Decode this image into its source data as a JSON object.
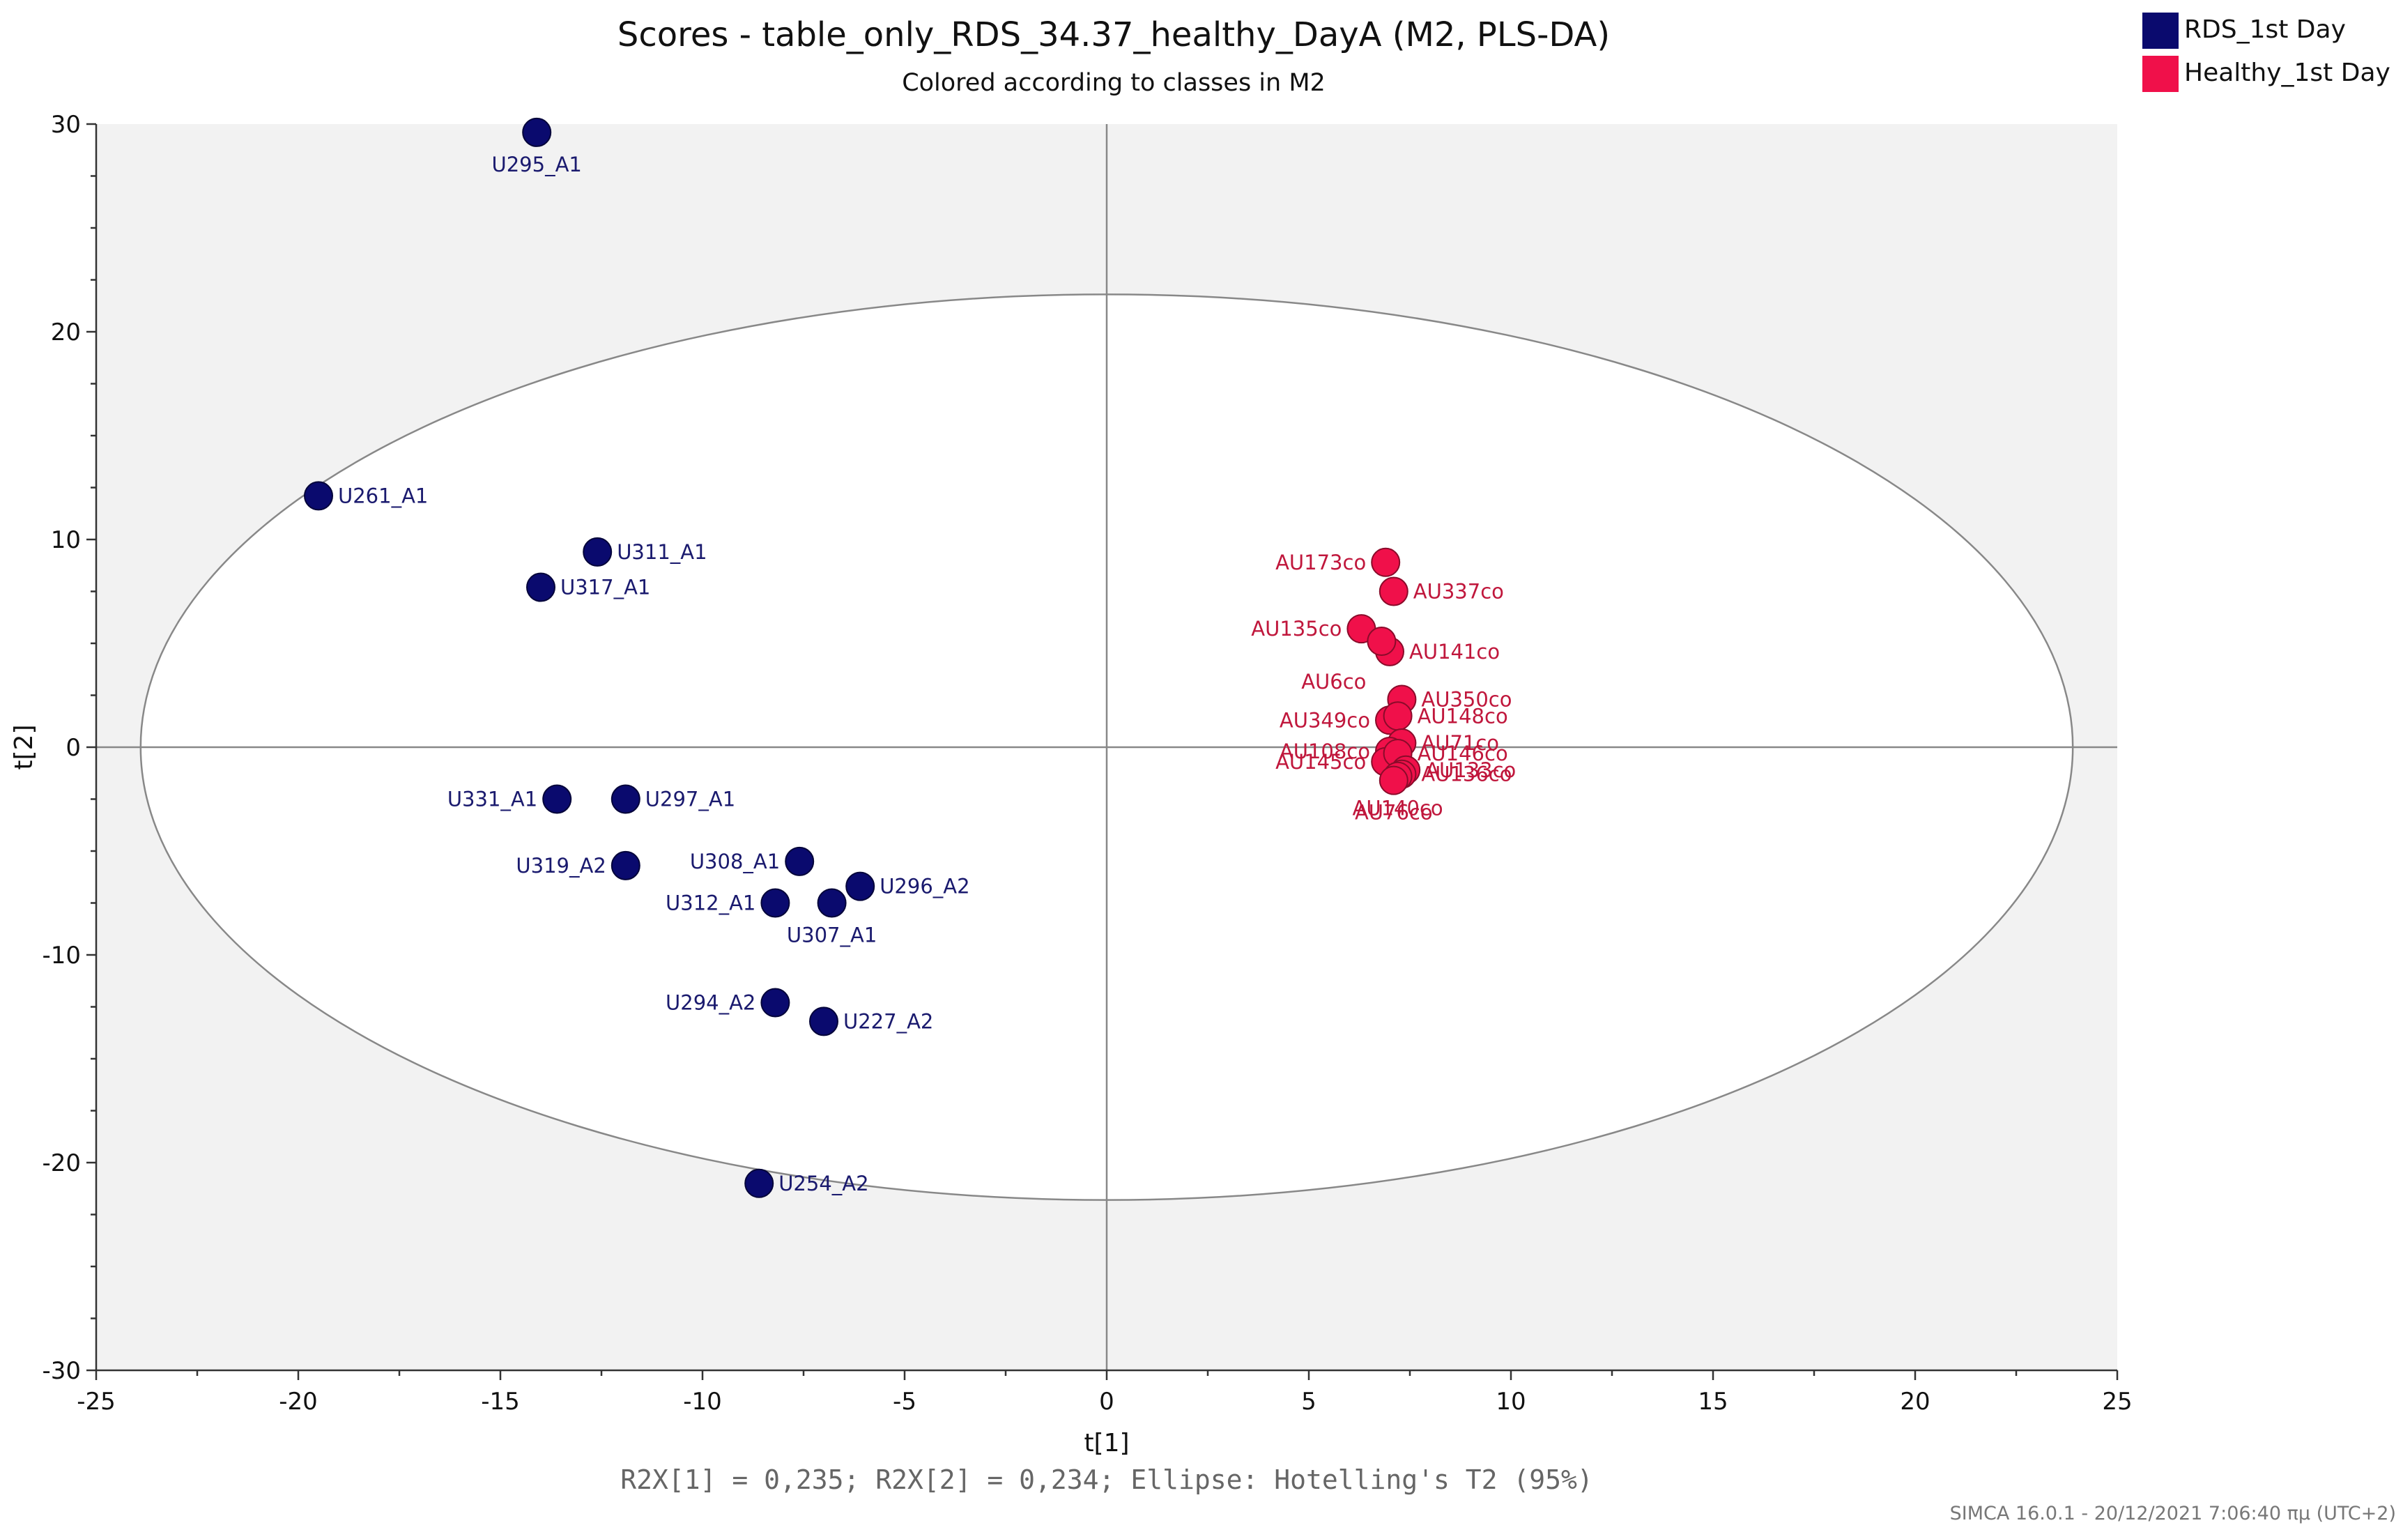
{
  "chart_data": {
    "type": "scatter",
    "title": "Scores - table_only_RDS_34.37_healthy_DayA (M2, PLS-DA)",
    "subtitle": "Colored according to classes in M2",
    "xlabel": "t[1]",
    "ylabel": "t[2]",
    "xlim": [
      -25,
      25
    ],
    "ylim": [
      -30,
      30
    ],
    "xticks": [
      -25,
      -20,
      -15,
      -10,
      -5,
      0,
      5,
      10,
      15,
      20,
      25
    ],
    "yticks": [
      -30,
      -20,
      -10,
      0,
      10,
      20,
      30
    ],
    "xtick_labels": [
      "-25",
      "-20",
      "-15",
      "-10",
      "-5",
      "0",
      "5",
      "10",
      "15",
      "20",
      "25"
    ],
    "ytick_labels": [
      "-30",
      "-20",
      "-10",
      "0",
      "10",
      "20",
      "30"
    ],
    "footer": "R2X[1] = 0,235; R2X[2] = 0,234; Ellipse: Hotelling's T2 (95%)",
    "version": "SIMCA 16.0.1 - 20/12/2021 7:06:40 πμ (UTC+2)",
    "ellipse": {
      "rx": 23.9,
      "ry": 21.8
    },
    "legend_position": "top-right",
    "series": [
      {
        "name": "RDS_1st Day",
        "color": "#0a0a6e",
        "label_color": "#1a1a6e",
        "points": [
          {
            "label": "U295_A1",
            "x": -14.1,
            "y": 29.6,
            "pos": "below"
          },
          {
            "label": "U261_A1",
            "x": -19.5,
            "y": 12.1,
            "pos": "right"
          },
          {
            "label": "U311_A1",
            "x": -12.6,
            "y": 9.4,
            "pos": "right"
          },
          {
            "label": "U317_A1",
            "x": -14.0,
            "y": 7.7,
            "pos": "right"
          },
          {
            "label": "U331_A1",
            "x": -13.6,
            "y": -2.5,
            "pos": "left"
          },
          {
            "label": "U297_A1",
            "x": -11.9,
            "y": -2.5,
            "pos": "right"
          },
          {
            "label": "U319_A2",
            "x": -11.9,
            "y": -5.7,
            "pos": "left"
          },
          {
            "label": "U308_A1",
            "x": -7.6,
            "y": -5.5,
            "pos": "left"
          },
          {
            "label": "U296_A2",
            "x": -6.1,
            "y": -6.7,
            "pos": "right"
          },
          {
            "label": "U312_A1",
            "x": -8.2,
            "y": -7.5,
            "pos": "left"
          },
          {
            "label": "U307_A1",
            "x": -6.8,
            "y": -7.5,
            "pos": "below"
          },
          {
            "label": "U294_A2",
            "x": -8.2,
            "y": -12.3,
            "pos": "left"
          },
          {
            "label": "U227_A2",
            "x": -7.0,
            "y": -13.2,
            "pos": "right"
          },
          {
            "label": "U254_A2",
            "x": -8.6,
            "y": -21.0,
            "pos": "right"
          }
        ]
      },
      {
        "name": "Healthy_1st Day",
        "color": "#f0104a",
        "label_color": "#c0173c",
        "points": [
          {
            "label": "AU173co",
            "x": 6.9,
            "y": 8.9,
            "pos": "left"
          },
          {
            "label": "AU337co",
            "x": 7.1,
            "y": 7.5,
            "pos": "right"
          },
          {
            "label": "AU135co",
            "x": 6.3,
            "y": 5.7,
            "pos": "left"
          },
          {
            "label": "AU141co",
            "x": 7.0,
            "y": 4.6,
            "pos": "right"
          },
          {
            "label": "AU6co",
            "x": 6.8,
            "y": 5.1,
            "pos": "below-left"
          },
          {
            "label": "AU350co",
            "x": 7.3,
            "y": 2.3,
            "pos": "right"
          },
          {
            "label": "AU349co",
            "x": 7.0,
            "y": 1.3,
            "pos": "left"
          },
          {
            "label": "AU148co",
            "x": 7.2,
            "y": 1.5,
            "pos": "right"
          },
          {
            "label": "AU71co",
            "x": 7.3,
            "y": 0.2,
            "pos": "right"
          },
          {
            "label": "AU108co",
            "x": 7.0,
            "y": -0.2,
            "pos": "left"
          },
          {
            "label": "AU145co",
            "x": 6.9,
            "y": -0.7,
            "pos": "left"
          },
          {
            "label": "AU146co",
            "x": 7.2,
            "y": -0.3,
            "pos": "right"
          },
          {
            "label": "AU133co",
            "x": 7.4,
            "y": -1.1,
            "pos": "right"
          },
          {
            "label": "AU136co",
            "x": 7.3,
            "y": -1.3,
            "pos": "right"
          },
          {
            "label": "AU140co",
            "x": 7.2,
            "y": -1.4,
            "pos": "below"
          },
          {
            "label": "AU76co",
            "x": 7.1,
            "y": -1.6,
            "pos": "below"
          }
        ]
      }
    ]
  }
}
